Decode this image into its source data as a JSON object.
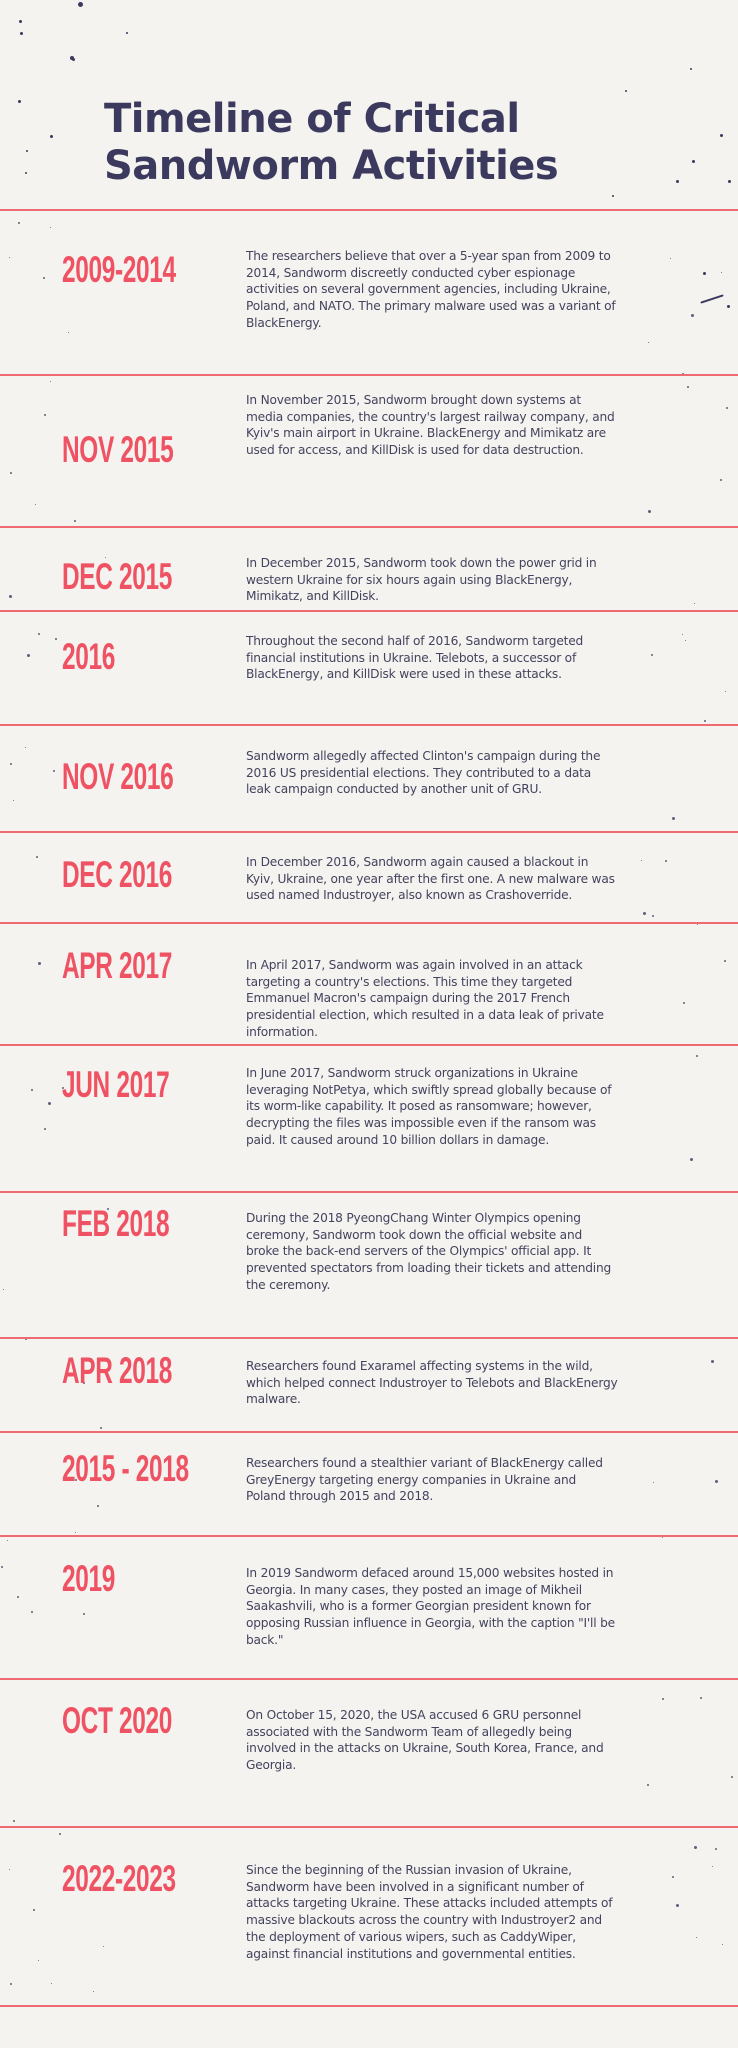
{
  "title": {
    "line1": "Timeline of Critical",
    "line2": "Sandworm Activities"
  },
  "colors": {
    "background": "#f4f3ef",
    "title": "#3b3a5e",
    "date": "#ef5263",
    "divider": "#ee6b74",
    "body_text": "#44435e"
  },
  "events": [
    {
      "date": "2009-2014",
      "text": "The researchers believe that over a 5-year span from 2009 to 2014, Sandworm discreetly conducted cyber espionage activities on several government agencies, including Ukraine, Poland, and NATO. The primary malware used was a variant of BlackEnergy."
    },
    {
      "date": "NOV 2015",
      "text": "In November 2015, Sandworm brought down systems at media companies, the country's largest railway company, and Kyiv's main airport in Ukraine. BlackEnergy and Mimikatz are used for access, and KillDisk is used for data destruction."
    },
    {
      "date": "DEC 2015",
      "text": "In December 2015, Sandworm took down the power grid in western Ukraine for six hours again using BlackEnergy, Mimikatz, and KillDisk."
    },
    {
      "date": "2016",
      "text": "Throughout the second half of 2016, Sandworm targeted financial institutions in Ukraine. Telebots, a successor of BlackEnergy, and KillDisk were used in these attacks."
    },
    {
      "date": "NOV 2016",
      "text": "Sandworm allegedly affected Clinton's campaign during the 2016 US presidential elections. They contributed to a data leak campaign conducted by another unit of GRU."
    },
    {
      "date": "DEC 2016",
      "text": "In December 2016, Sandworm again caused a blackout in Kyiv, Ukraine, one year after the first one. A new malware was used named Industroyer, also known as Crashoverride."
    },
    {
      "date": "APR 2017",
      "text": "In April 2017, Sandworm was again involved in an attack targeting a country's elections. This time they targeted Emmanuel Macron's campaign during the 2017 French presidential election, which resulted in a data leak of private information."
    },
    {
      "date": "JUN 2017",
      "text": "In June 2017, Sandworm struck organizations in Ukraine leveraging NotPetya, which swiftly spread globally because of its worm-like capability. It posed as ransomware; however, decrypting the files was impossible even if the ransom was paid. It caused around 10 billion dollars in damage."
    },
    {
      "date": "FEB 2018",
      "text": "During the 2018 PyeongChang Winter Olympics opening ceremony, Sandworm took down the official website and broke the back-end servers of the Olympics' official app. It prevented spectators from loading their tickets and attending the ceremony."
    },
    {
      "date": "APR 2018",
      "text": "Researchers found Exaramel affecting systems in the wild, which helped connect Industroyer to Telebots and BlackEnergy malware."
    },
    {
      "date": "2015 - 2018",
      "text": "Researchers found a stealthier variant of BlackEnergy called GreyEnergy targeting energy companies in Ukraine and Poland through 2015 and 2018."
    },
    {
      "date": "2019",
      "text": "In 2019 Sandworm defaced around 15,000 websites hosted in Georgia. In many cases, they posted an image of Mikheil Saakashvili, who is a former Georgian president known for opposing Russian influence in Georgia, with the caption \"I'll be back.\""
    },
    {
      "date": "OCT 2020",
      "text": "On October 15, 2020, the USA accused 6 GRU personnel associated with the Sandworm Team of allegedly being involved in the attacks on Ukraine, South Korea, France, and Georgia."
    },
    {
      "date": "2022-2023",
      "text": "Since the beginning of the Russian invasion of Ukraine, Sandworm have been involved in a significant number of attacks targeting Ukraine. These attacks included attempts of massive blackouts across the country with Industroyer2 and the deployment of various wipers, such as CaddyWiper, against financial institutions and governmental entities."
    }
  ]
}
